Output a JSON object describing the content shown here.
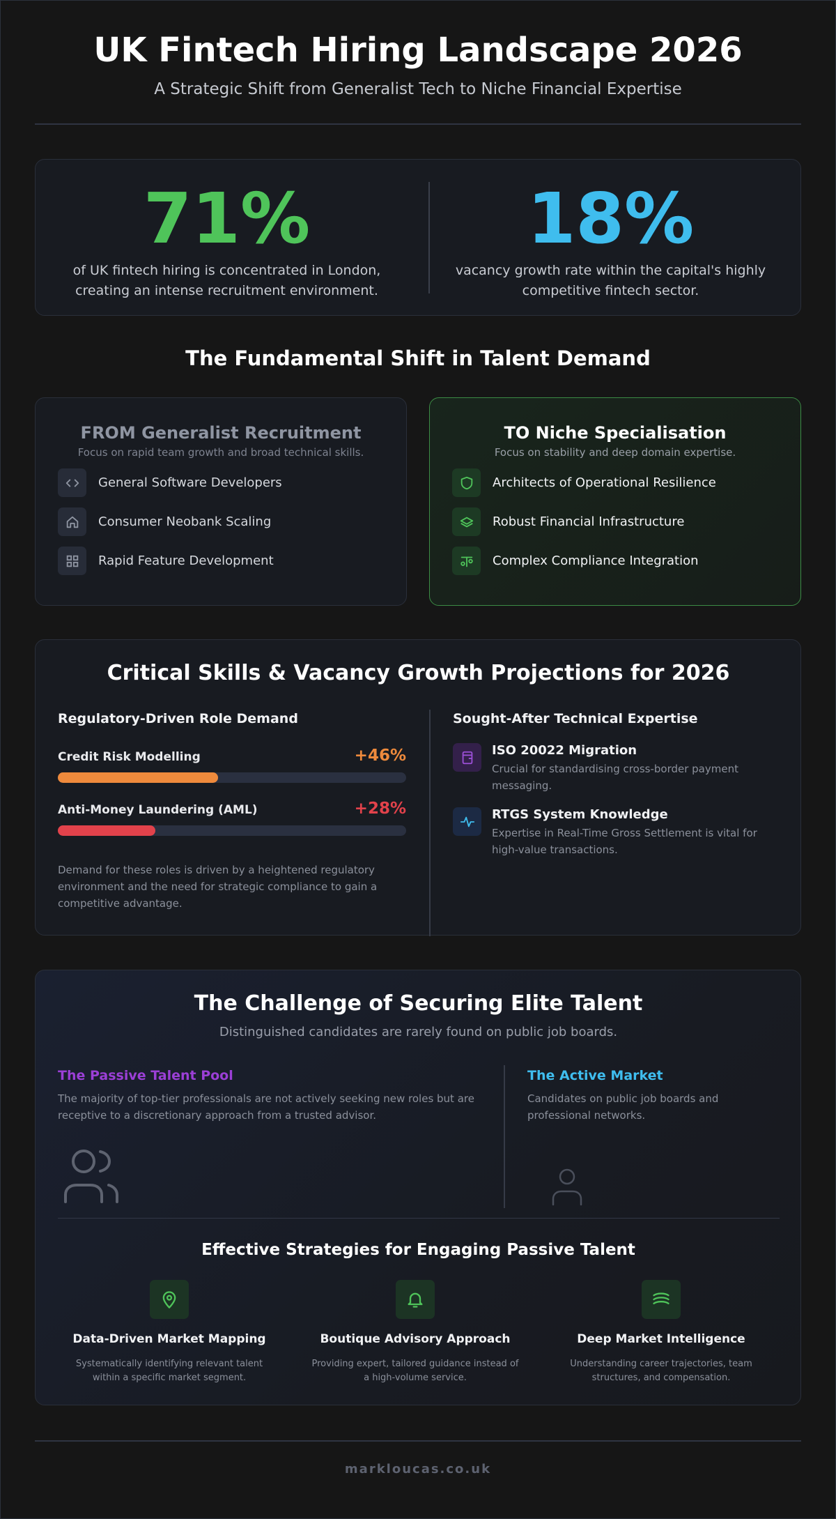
{
  "header": {
    "title": "UK Fintech Hiring Landscape 2026",
    "subtitle": "A Strategic Shift from Generalist Tech to Niche Financial Expertise"
  },
  "stats": [
    {
      "value": "71%",
      "text": "of UK fintech hiring is concentrated in London, creating an intense recruitment environment.",
      "color": "#4fc45a"
    },
    {
      "value": "18%",
      "text": "vacancy growth rate within the capital's highly competitive fintech sector.",
      "color": "#3fbdee"
    }
  ],
  "shift": {
    "title": "The Fundamental Shift in Talent Demand",
    "from": {
      "heading": "FROM Generalist Recruitment",
      "subtitle": "Focus on rapid team growth and broad technical skills.",
      "items": [
        {
          "label": "General Software Developers",
          "icon": "code-icon"
        },
        {
          "label": "Consumer Neobank Scaling",
          "icon": "home-icon"
        },
        {
          "label": "Rapid Feature Development",
          "icon": "grid-icon"
        }
      ]
    },
    "to": {
      "heading": "TO Niche Specialisation",
      "subtitle": "Focus on stability and deep domain expertise.",
      "items": [
        {
          "label": "Architects of Operational Resilience",
          "icon": "shield-icon"
        },
        {
          "label": "Robust Financial Infrastructure",
          "icon": "layers-icon"
        },
        {
          "label": "Complex Compliance Integration",
          "icon": "scales-icon"
        }
      ]
    }
  },
  "skills": {
    "title": "Critical Skills & Vacancy Growth Projections for 2026",
    "left_heading": "Regulatory-Driven Role Demand",
    "roles": [
      {
        "label": "Credit Risk Modelling",
        "value": "+46%",
        "fill": 0.46,
        "color": "#ee8a3c"
      },
      {
        "label": "Anti-Money Laundering (AML)",
        "value": "+28%",
        "fill": 0.28,
        "color": "#e2424b"
      }
    ],
    "note": "Demand for these roles is driven by a heightened regulatory environment and the need for strategic compliance to gain a competitive advantage.",
    "right_heading": "Sought-After Technical Expertise",
    "tech": [
      {
        "name": "ISO 20022 Migration",
        "desc": "Crucial for standardising cross-border payment messaging.",
        "icon": "wallet-icon"
      },
      {
        "name": "RTGS System Knowledge",
        "desc": "Expertise in Real-Time Gross Settlement is vital for high-value transactions.",
        "icon": "pulse-icon"
      }
    ]
  },
  "challenge": {
    "title": "The Challenge of Securing Elite Talent",
    "subtitle": "Distinguished candidates are rarely found on public job boards.",
    "passive_heading": "The Passive Talent Pool",
    "passive_text": "The majority of top-tier professionals are not actively seeking new roles but are receptive to a discretionary approach from a trusted advisor.",
    "active_heading": "The Active Market",
    "active_text": "Candidates on public job boards and professional networks.",
    "strategies_title": "Effective Strategies for Engaging Passive Talent",
    "strategies": [
      {
        "name": "Data-Driven Market Mapping",
        "desc": "Systematically identifying relevant talent within a specific market segment.",
        "icon": "map-pin-icon"
      },
      {
        "name": "Boutique Advisory Approach",
        "desc": "Providing expert, tailored guidance instead of a high-volume service.",
        "icon": "bell-icon"
      },
      {
        "name": "Deep Market Intelligence",
        "desc": "Understanding career trajectories, team structures, and compensation.",
        "icon": "wave-icon"
      }
    ]
  },
  "footer": {
    "site": "markloucas.co.uk"
  }
}
